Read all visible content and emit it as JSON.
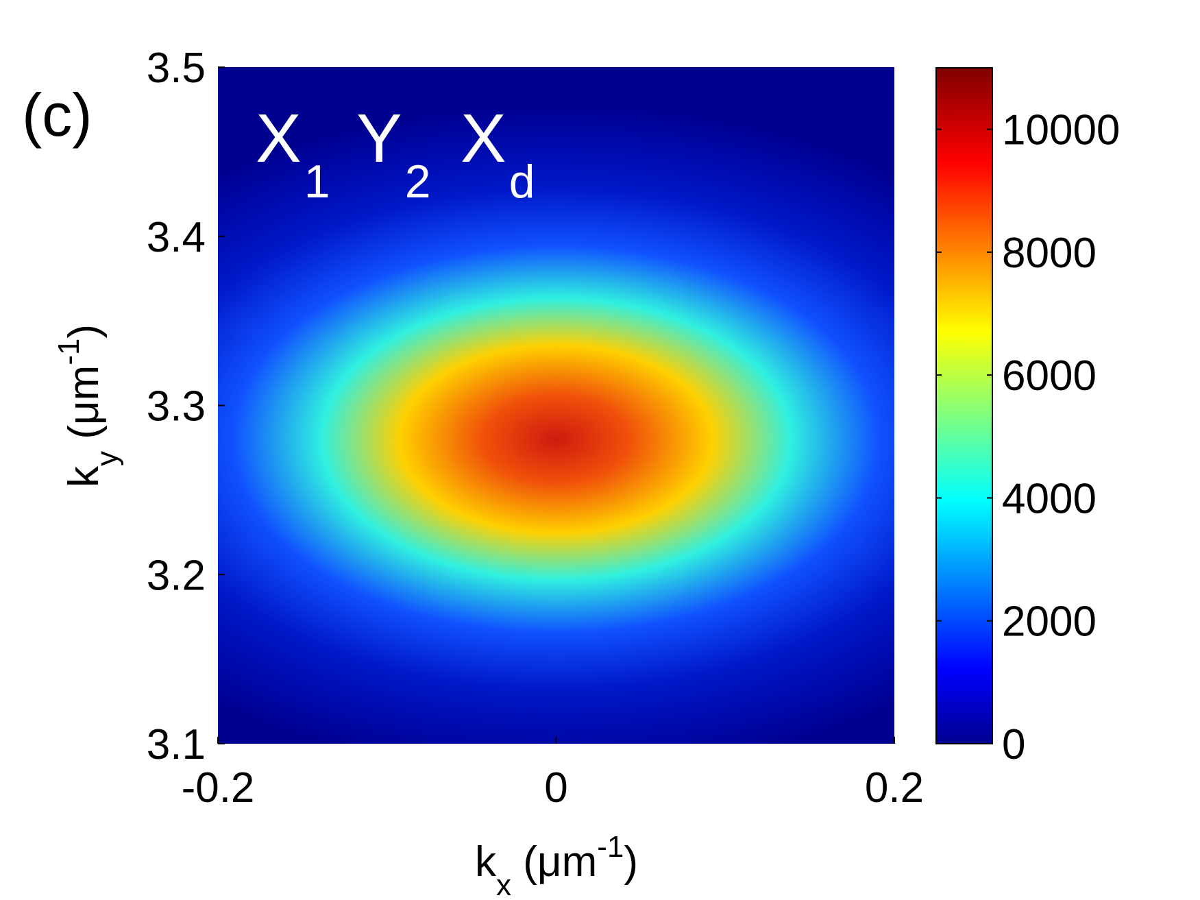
{
  "panel_label": "(c)",
  "chart_data": {
    "type": "heatmap",
    "title": "",
    "annotation": {
      "parts": [
        {
          "base": "X",
          "sub": "1"
        },
        {
          "base": "Y",
          "sub": "2"
        },
        {
          "base": "X",
          "sub": "d"
        }
      ]
    },
    "xlabel": {
      "base": "k",
      "sub": "x",
      "unit_prefix": " (μm",
      "unit_sup": "-1",
      "unit_suffix": ")"
    },
    "ylabel": {
      "base": "k",
      "sub": "y",
      "unit_prefix": " (μm",
      "unit_sup": "-1",
      "unit_suffix": ")"
    },
    "xlim": [
      -0.2,
      0.2
    ],
    "ylim": [
      3.1,
      3.5
    ],
    "x_ticks": [
      {
        "value": -0.2,
        "label": "-0.2"
      },
      {
        "value": 0,
        "label": "0"
      },
      {
        "value": 0.2,
        "label": "0.2"
      }
    ],
    "y_ticks": [
      {
        "value": 3.1,
        "label": "3.1"
      },
      {
        "value": 3.2,
        "label": "3.2"
      },
      {
        "value": 3.3,
        "label": "3.3"
      },
      {
        "value": 3.4,
        "label": "3.4"
      },
      {
        "value": 3.5,
        "label": "3.5"
      }
    ],
    "colormap": "jet",
    "colorbar": {
      "range": [
        0,
        11000
      ],
      "ticks": [
        {
          "value": 0,
          "label": "0"
        },
        {
          "value": 2000,
          "label": "2000"
        },
        {
          "value": 4000,
          "label": "4000"
        },
        {
          "value": 6000,
          "label": "6000"
        },
        {
          "value": 8000,
          "label": "8000"
        },
        {
          "value": 10000,
          "label": "10000"
        }
      ]
    },
    "peak": {
      "x": 0.0,
      "y": 3.28,
      "value": 10500
    },
    "sigma_x": 0.055,
    "sigma_y": 0.033,
    "grid": false
  }
}
